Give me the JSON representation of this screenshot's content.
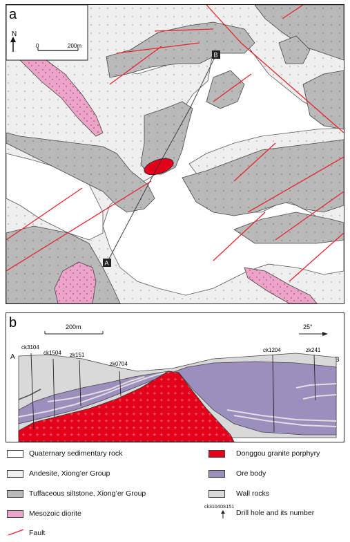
{
  "panels": {
    "a_label": "a",
    "b_label": "b"
  },
  "map": {
    "north_label": "N",
    "scale_start": "0",
    "scale_end": "200m",
    "point_a": "A",
    "point_b": "B"
  },
  "section": {
    "scale_label": "200m",
    "angle_label": "25°",
    "end_a": "A",
    "end_b": "B",
    "drill_holes": [
      "ck3104",
      "ck1504",
      "zk151",
      "zk0704",
      "ck1204",
      "zk241"
    ]
  },
  "legend": {
    "items": [
      {
        "label": "Quaternary sedimentary rock",
        "color": "#ffffff"
      },
      {
        "label": "Andesite, Xiong’er Group",
        "color": "#efefef"
      },
      {
        "label": "Tuffaceous siltstone, Xiong’er Group",
        "color": "#b9b9b9"
      },
      {
        "label": "Mesozoic diorite",
        "color": "#eaa5c8"
      },
      {
        "label": "Fault",
        "color": "#e8222a"
      },
      {
        "label": "Donggou granite porphyry",
        "color": "#e3001b"
      },
      {
        "label": "Ore body",
        "color": "#9b8fbd"
      },
      {
        "label": "Wall rocks",
        "color": "#d9d9d9"
      },
      {
        "label": "Drill hole  and its number",
        "color": "#333333"
      }
    ],
    "drill_icon_label": "ck3104/zk151"
  },
  "colors": {
    "andesite": "#efefef",
    "siltstone": "#b9b9b9",
    "diorite": "#eaa5c8",
    "granite": "#e3001b",
    "ore": "#9b8fbd",
    "wall": "#d9d9d9",
    "fault": "#e8222a"
  }
}
